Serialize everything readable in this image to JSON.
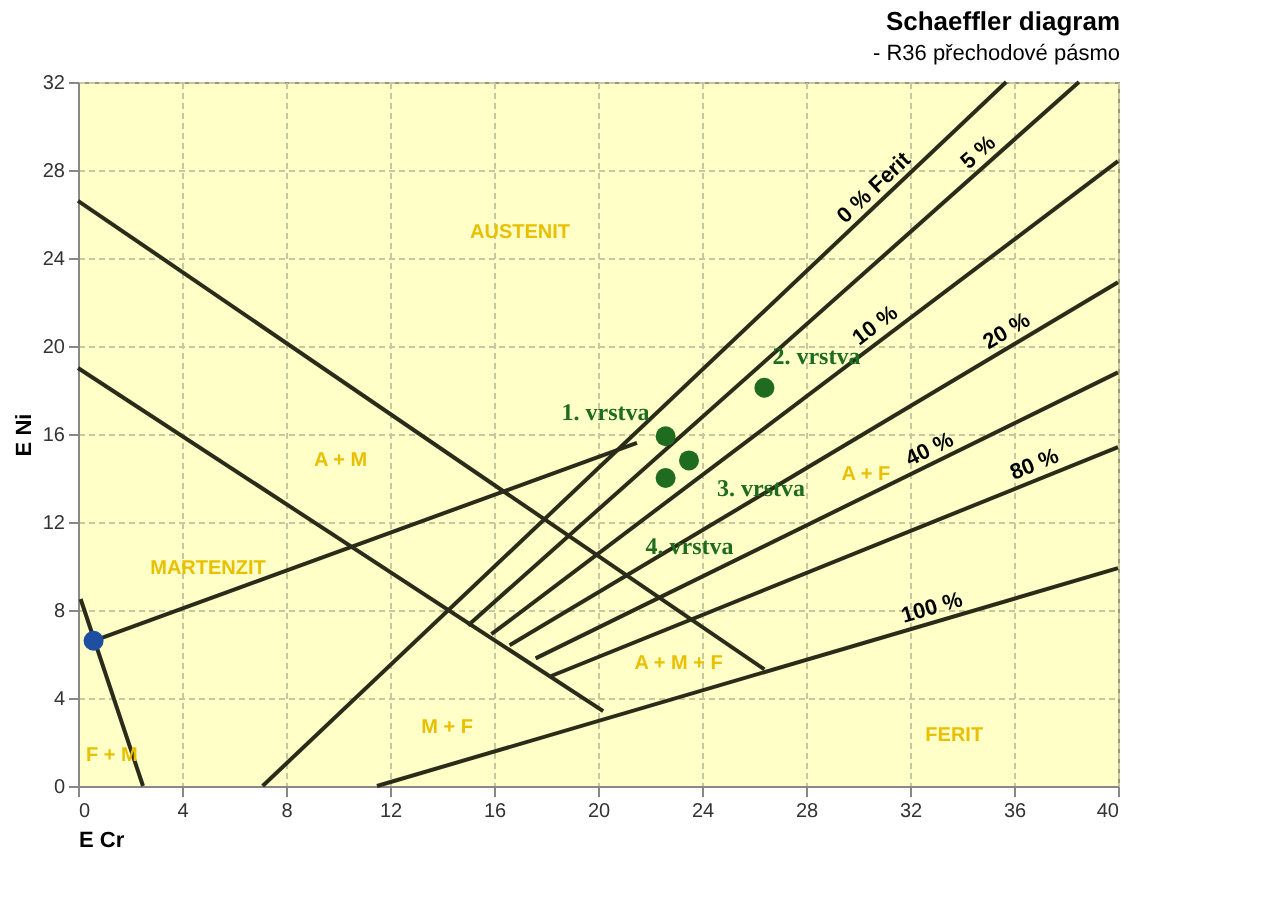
{
  "chart_data": {
    "type": "line",
    "title": "Schaeffler diagram",
    "subtitle": "- R36 přechodové pásmo",
    "xlabel": "E Cr",
    "ylabel": "E Ni",
    "xlim": [
      0,
      40
    ],
    "ylim": [
      0,
      32
    ],
    "xticks": [
      0,
      4,
      8,
      12,
      16,
      20,
      24,
      28,
      32,
      36,
      40
    ],
    "yticks": [
      0,
      4,
      8,
      12,
      16,
      20,
      24,
      28,
      32
    ],
    "grid": true,
    "marker": "none",
    "line_style": "solid",
    "series": [
      {
        "color": "#2b2b1a",
        "x": [
          0,
          26.4
        ],
        "values": [
          26.6,
          5.3
        ]
      },
      {
        "color": "#2b2b1a",
        "x": [
          0,
          20.2
        ],
        "values": [
          19.0,
          3.4
        ]
      },
      {
        "color": "#2b2b1a",
        "x": [
          0.1,
          2.5
        ],
        "values": [
          8.5,
          0
        ]
      },
      {
        "color": "#2b2b1a",
        "x": [
          0.6,
          21.5
        ],
        "values": [
          6.6,
          15.6
        ]
      },
      {
        "color": "#2b2b1a",
        "x": [
          7.1,
          35.7
        ],
        "values": [
          0,
          32
        ]
      },
      {
        "color": "#2b2b1a",
        "x": [
          15.0,
          38.5
        ],
        "values": [
          7.3,
          32
        ]
      },
      {
        "color": "#2b2b1a",
        "x": [
          15.9,
          40
        ],
        "values": [
          6.9,
          28.4
        ]
      },
      {
        "color": "#2b2b1a",
        "x": [
          16.6,
          40
        ],
        "values": [
          6.4,
          22.9
        ]
      },
      {
        "color": "#2b2b1a",
        "x": [
          17.6,
          40
        ],
        "values": [
          5.8,
          18.8
        ]
      },
      {
        "color": "#2b2b1a",
        "x": [
          18.2,
          40
        ],
        "values": [
          5.0,
          15.4
        ]
      },
      {
        "color": "#2b2b1a",
        "x": [
          11.5,
          40
        ],
        "values": [
          0,
          9.9
        ]
      },
      {
        "type": "scatter",
        "marker": "circle",
        "color": "#1f6b1f",
        "x": [
          22.6,
          26.4,
          23.5,
          22.6
        ],
        "values": [
          15.9,
          18.1,
          14.8,
          14.0
        ]
      },
      {
        "type": "scatter",
        "marker": "circle",
        "color": "#1f4fa0",
        "x": [
          0.6
        ],
        "values": [
          6.6
        ]
      }
    ],
    "annotations": [
      "AUSTENIT",
      "A + M",
      "MARTENZIT",
      "A + F",
      "A + M + F",
      "M + F",
      "F + M",
      "FERIT",
      {
        "text": "0 % Ferit",
        "x": 31,
        "y": 26.7
      },
      {
        "text": "5 %",
        "x": 35,
        "y": 28.3
      },
      {
        "text": "10 %",
        "x": 31,
        "y": 20.4
      },
      {
        "text": "20 %",
        "x": 36,
        "y": 20.1
      },
      {
        "text": "40 %",
        "x": 33,
        "y": 14.7
      },
      {
        "text": "80 %",
        "x": 37,
        "y": 14.0
      },
      {
        "text": "100 %",
        "x": 33,
        "y": 7.46
      },
      {
        "text": "1. vrstva",
        "x": 22.6,
        "y": 15.9
      },
      {
        "text": "2. vrstva",
        "x": 26.4,
        "y": 18.1
      },
      {
        "text": "3. vrstva",
        "x": 23.5,
        "y": 14.8
      },
      {
        "text": "4. vrstva",
        "x": 22.6,
        "y": 14.0
      }
    ]
  }
}
